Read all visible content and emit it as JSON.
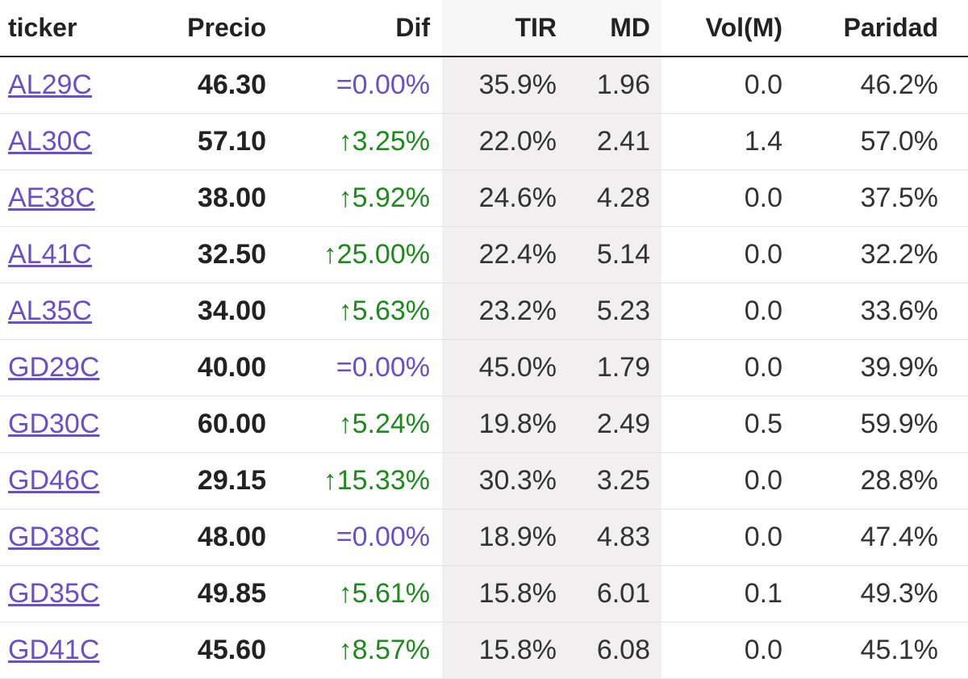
{
  "table": {
    "headers": [
      "ticker",
      "Precio",
      "Dif",
      "TIR",
      "MD",
      "Vol(M)",
      "Paridad"
    ],
    "rows": [
      [
        "AL29C",
        "46.30",
        "=0.00%",
        "35.9%",
        "1.96",
        "0.0",
        "46.2%"
      ],
      [
        "AL30C",
        "57.10",
        "↑3.25%",
        "22.0%",
        "2.41",
        "1.4",
        "57.0%"
      ],
      [
        "AE38C",
        "38.00",
        "↑5.92%",
        "24.6%",
        "4.28",
        "0.0",
        "37.5%"
      ],
      [
        "AL41C",
        "32.50",
        "↑25.00%",
        "22.4%",
        "5.14",
        "0.0",
        "32.2%"
      ],
      [
        "AL35C",
        "34.00",
        "↑5.63%",
        "23.2%",
        "5.23",
        "0.0",
        "33.6%"
      ],
      [
        "GD29C",
        "40.00",
        "=0.00%",
        "45.0%",
        "1.79",
        "0.0",
        "39.9%"
      ],
      [
        "GD30C",
        "60.00",
        "↑5.24%",
        "19.8%",
        "2.49",
        "0.5",
        "59.9%"
      ],
      [
        "GD46C",
        "29.15",
        "↑15.33%",
        "30.3%",
        "3.25",
        "0.0",
        "28.8%"
      ],
      [
        "GD38C",
        "48.00",
        "=0.00%",
        "18.9%",
        "4.83",
        "0.0",
        "47.4%"
      ],
      [
        "GD35C",
        "49.85",
        "↑5.61%",
        "15.8%",
        "6.01",
        "0.1",
        "49.3%"
      ],
      [
        "GD41C",
        "45.60",
        "↑8.57%",
        "15.8%",
        "6.08",
        "0.0",
        "45.1%"
      ]
    ],
    "dif_colors": [
      "#6a4fc9",
      "#1e8a1e",
      "#1e8a1e",
      "#1e8a1e",
      "#1e8a1e",
      "#6a4fc9",
      "#1e8a1e",
      "#1e8a1e",
      "#6a4fc9",
      "#1e8a1e",
      "#1e8a1e"
    ],
    "link_color": "#6a4fc9"
  }
}
